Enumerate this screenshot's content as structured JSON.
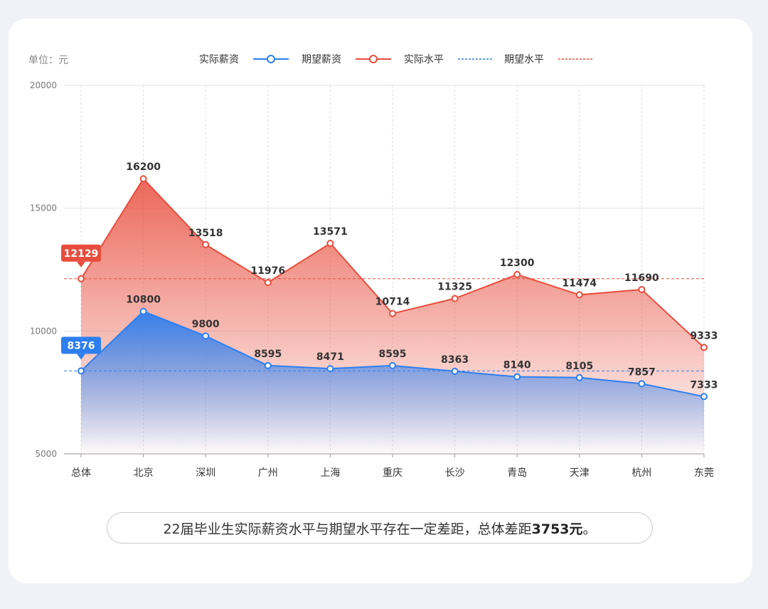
{
  "unit_label": "单位：元",
  "caption": {
    "prefix": "22届毕业生实际薪资水平与期望水平存在一定差距，总体差距",
    "highlight": "3753元",
    "suffix": "。"
  },
  "colors": {
    "actual": "#2d7ff0",
    "expected": "#e84d3d"
  },
  "chart_data": {
    "type": "line",
    "categories": [
      "总体",
      "北京",
      "深圳",
      "广州",
      "上海",
      "重庆",
      "长沙",
      "青岛",
      "天津",
      "杭州",
      "东莞"
    ],
    "series": [
      {
        "name": "实际薪资",
        "values": [
          8376,
          10800,
          9800,
          8595,
          8471,
          8595,
          8363,
          8140,
          8105,
          7857,
          7333
        ]
      },
      {
        "name": "期望薪资",
        "values": [
          12129,
          16200,
          13518,
          11976,
          13571,
          10714,
          11325,
          12300,
          11474,
          11690,
          9333
        ]
      }
    ],
    "reference_lines": [
      {
        "name": "实际水平",
        "value": 8376,
        "label": "8376"
      },
      {
        "name": "期望水平",
        "value": 12129,
        "label": "12129"
      }
    ],
    "ylim": [
      5000,
      20000
    ],
    "yticks": [
      5000,
      10000,
      15000,
      20000
    ],
    "legend": "top-center",
    "grid": true
  }
}
